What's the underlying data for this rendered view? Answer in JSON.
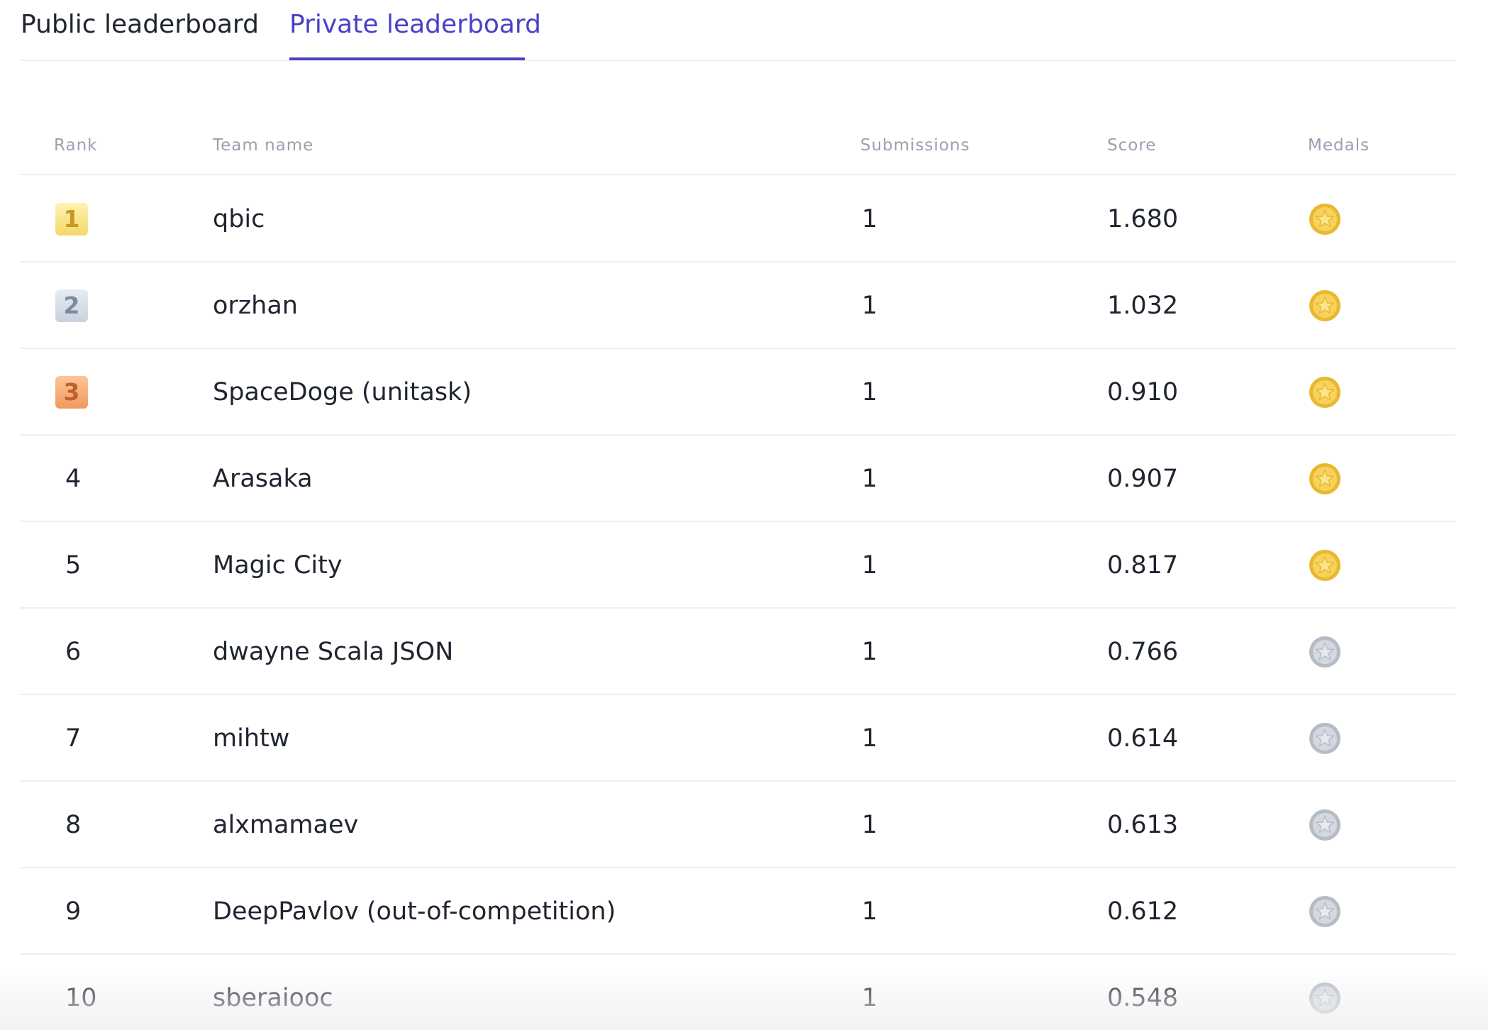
{
  "tabs": [
    "Public leaderboard",
    "Private leaderboard"
  ],
  "active_tab": 1,
  "table": {
    "columns": [
      "Rank",
      "Team name",
      "Submissions",
      "Score",
      "Medals"
    ],
    "rows": [
      [
        1,
        "qbic",
        1,
        "1.680",
        "gold"
      ],
      [
        2,
        "orzhan",
        1,
        "1.032",
        "gold"
      ],
      [
        3,
        "SpaceDoge (unitask)",
        1,
        "0.910",
        "gold"
      ],
      [
        4,
        "Arasaka",
        1,
        "0.907",
        "gold"
      ],
      [
        5,
        "Magic City",
        1,
        "0.817",
        "gold"
      ],
      [
        6,
        "dwayne Scala JSON",
        1,
        "0.766",
        "silver"
      ],
      [
        7,
        "mihtw",
        1,
        "0.614",
        "silver"
      ],
      [
        8,
        "alxmamaev",
        1,
        "0.613",
        "silver"
      ],
      [
        9,
        "DeepPavlov (out-of-competition)",
        1,
        "0.612",
        "silver"
      ],
      [
        10,
        "sberaiooc",
        1,
        "0.548",
        "silver"
      ]
    ]
  }
}
